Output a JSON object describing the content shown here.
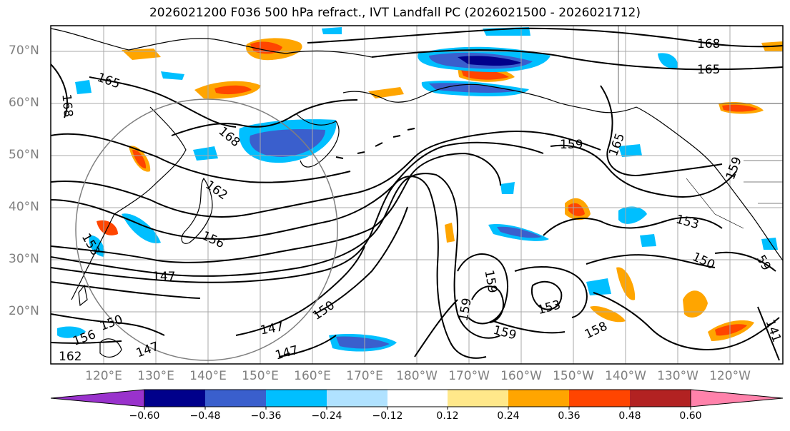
{
  "title": "2026021200 F036 500 hPa refract., IVT Landfall PC (2026021500 - 2026021712)",
  "map": {
    "lat_labels": [
      "70°N",
      "60°N",
      "50°N",
      "40°N",
      "30°N",
      "20°N"
    ],
    "lon_labels": [
      "120°E",
      "130°E",
      "140°E",
      "150°E",
      "160°E",
      "170°E",
      "180°W",
      "170°W",
      "160°W",
      "150°W",
      "140°W",
      "130°W",
      "120°W"
    ],
    "contour_labels": [
      "168",
      "165",
      "168",
      "165",
      "168",
      "159",
      "165",
      "159",
      "162",
      "156",
      "147",
      "153",
      "150",
      "159",
      "159",
      "153",
      "159",
      "150",
      "147",
      "147",
      "156",
      "150",
      "162",
      "147",
      "59",
      "153",
      "158",
      "141"
    ]
  },
  "colorbar": {
    "tick_labels": [
      "−0.60",
      "−0.48",
      "−0.36",
      "−0.24",
      "−0.12",
      "0.12",
      "0.24",
      "0.36",
      "0.48",
      "0.60"
    ],
    "colors": [
      "#9932cc",
      "#00008b",
      "#3a5fcd",
      "#00bfff",
      "#b0e2ff",
      "#ffffff",
      "#ffe88a",
      "#ffa500",
      "#ff4500",
      "#b22222",
      "#ff82ab"
    ]
  }
}
